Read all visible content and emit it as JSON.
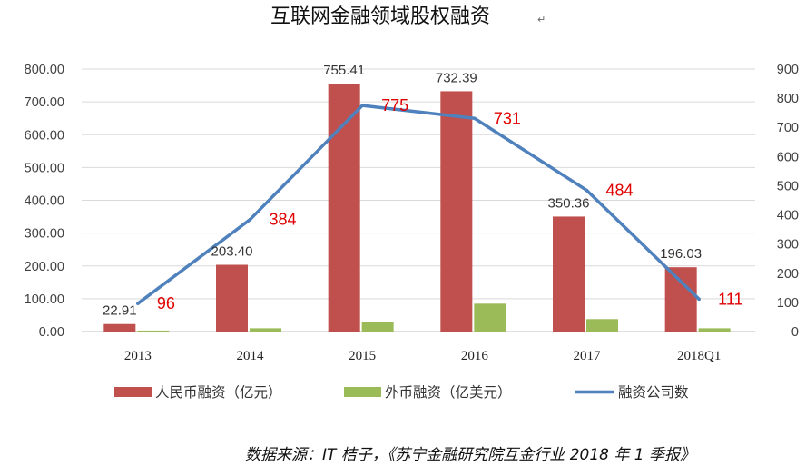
{
  "chart_data": {
    "type": "bar",
    "title": "互联网金融领域股权融资",
    "title_mark": "↵",
    "categories": [
      "2013",
      "2014",
      "2015",
      "2016",
      "2017",
      "2018Q1"
    ],
    "series": [
      {
        "name": "人民币融资（亿元）",
        "type": "bar",
        "axis": "left",
        "color": "#c0504d",
        "values": [
          22.91,
          203.4,
          755.41,
          732.39,
          350.36,
          196.03
        ],
        "labels": [
          "22.91",
          "203.40",
          "755.41",
          "732.39",
          "350.36",
          "196.03"
        ]
      },
      {
        "name": "外币融资（亿美元）",
        "type": "bar",
        "axis": "left",
        "color": "#9bbb59",
        "values": [
          3,
          10,
          30,
          85,
          38,
          10
        ]
      },
      {
        "name": "融资公司数",
        "type": "line",
        "axis": "right",
        "color": "#4f81bd",
        "values": [
          96,
          384,
          775,
          731,
          484,
          111
        ],
        "labels": [
          "96",
          "384",
          "775",
          "731",
          "484",
          "111"
        ],
        "label_color": "#e00000"
      }
    ],
    "y_left": {
      "min": 0,
      "max": 800,
      "step": 100,
      "ticks": [
        "0.00",
        "100.00",
        "200.00",
        "300.00",
        "400.00",
        "500.00",
        "600.00",
        "700.00",
        "800.00"
      ]
    },
    "y_right": {
      "min": 0,
      "max": 900,
      "step": 100,
      "ticks": [
        "0",
        "100",
        "200",
        "300",
        "400",
        "500",
        "600",
        "700",
        "800",
        "900"
      ]
    },
    "grid": true,
    "legend_position": "bottom",
    "source_note": "数据来源：IT 桔子，《苏宁金融研究院互金行业 2018 年 1 季报》"
  }
}
